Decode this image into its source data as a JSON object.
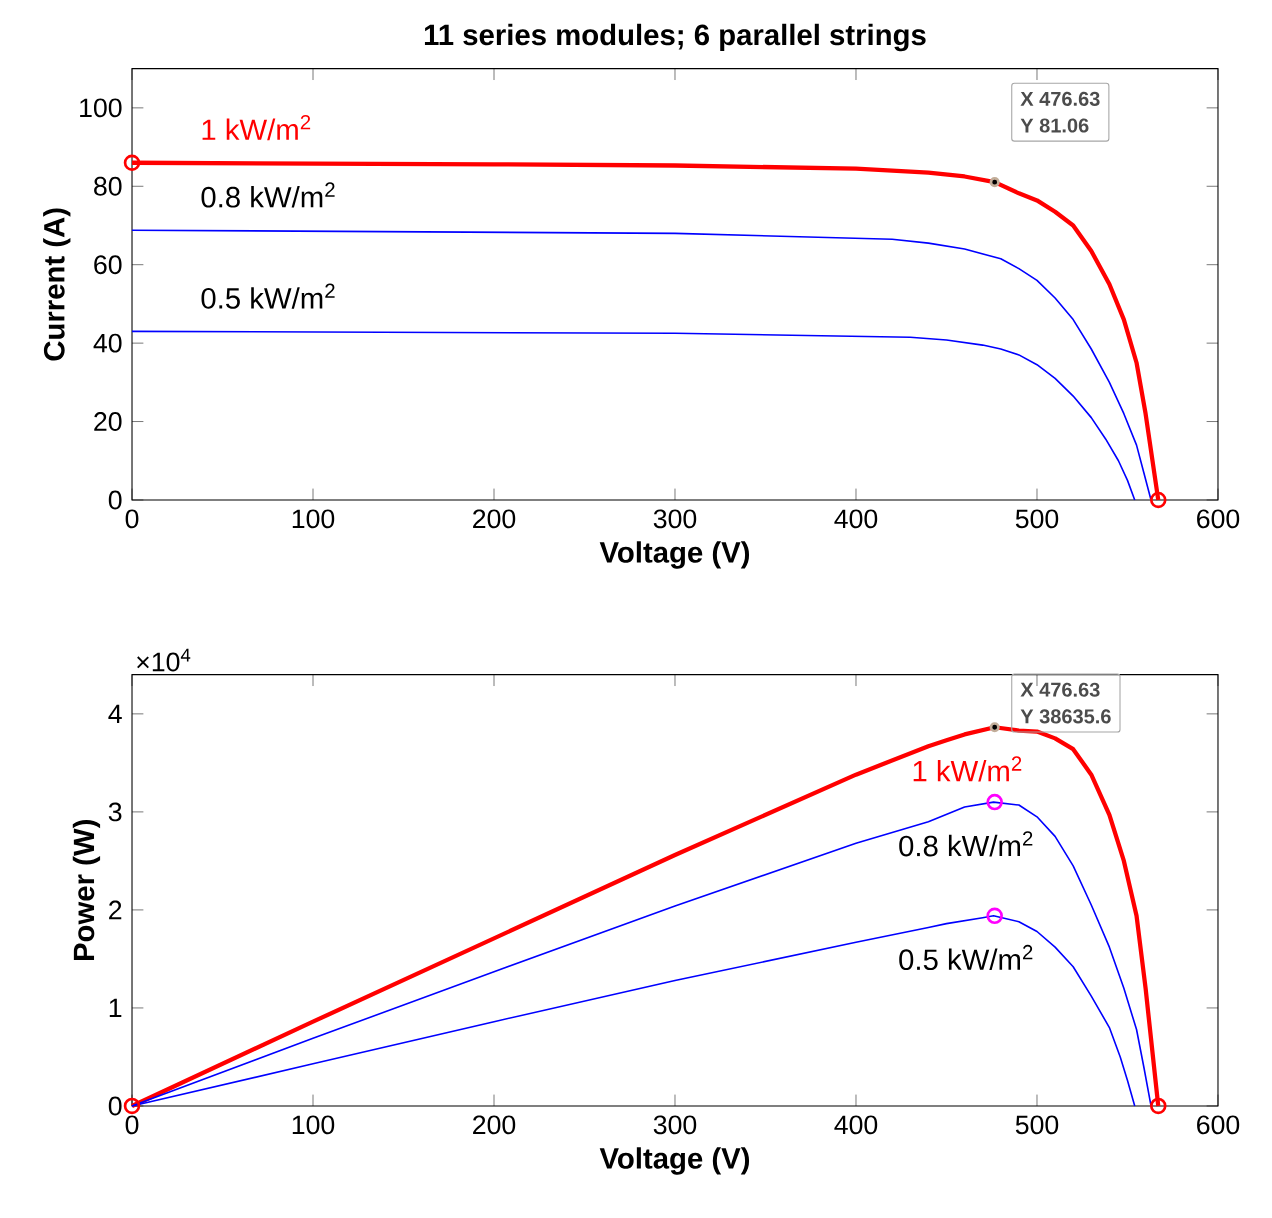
{
  "chart_data": [
    {
      "type": "line",
      "title": "11 series modules; 6 parallel strings",
      "xlabel": "Voltage (V)",
      "ylabel": "Current (A)",
      "xlim": [
        0,
        600
      ],
      "ylim": [
        0,
        110
      ],
      "xticks": [
        0,
        100,
        200,
        300,
        400,
        500,
        600
      ],
      "yticks": [
        0,
        20,
        40,
        60,
        80,
        100
      ],
      "grid": false,
      "series": [
        {
          "name": "1 kW/m$^{2}$",
          "color": "#ff0000",
          "x": [
            0,
            100,
            200,
            300,
            400,
            440,
            460,
            476.63,
            490,
            500,
            510,
            520,
            530,
            540,
            548,
            555,
            560,
            567
          ],
          "values": [
            86,
            85.8,
            85.6,
            85.3,
            84.5,
            83.5,
            82.5,
            81.06,
            78.2,
            76.4,
            73.5,
            70,
            63.5,
            55,
            46,
            35,
            22,
            0
          ]
        },
        {
          "name": "0.8 kW/m$^{2}$",
          "color": "#0000ff",
          "x": [
            0,
            300,
            420,
            440,
            460,
            480,
            490,
            500,
            510,
            520,
            530,
            540,
            548,
            555,
            559,
            563
          ],
          "values": [
            68.8,
            68,
            66.5,
            65.5,
            64,
            61.5,
            59,
            56,
            51.5,
            46,
            38.5,
            30,
            22,
            14,
            7,
            0
          ]
        },
        {
          "name": "0.5 kW/m$^{2}$",
          "color": "#0000ff",
          "x": [
            0,
            300,
            430,
            450,
            470,
            480,
            490,
            500,
            510,
            520,
            530,
            538,
            545,
            550,
            554
          ],
          "values": [
            43,
            42.5,
            41.5,
            40.8,
            39.5,
            38.5,
            37,
            34.5,
            31,
            26.5,
            21,
            15.5,
            10,
            5,
            0
          ]
        },
        {
          "type": "scatter",
          "marker": "circle",
          "color": "#ff0000",
          "x": [
            0,
            567
          ],
          "values": [
            86,
            0
          ]
        },
        {
          "type": "scatter",
          "marker": "dot",
          "color": "#000000",
          "x": [
            476.63
          ],
          "values": [
            81.06
          ]
        }
      ],
      "annotations": [
        "X 476.63",
        "Y 81.06"
      ]
    },
    {
      "type": "line",
      "xlabel": "Voltage (V)",
      "ylabel": "Power (W)",
      "xlim": [
        0,
        600
      ],
      "ylim": [
        0,
        4.4
      ],
      "xticks": [
        0,
        100,
        200,
        300,
        400,
        500,
        600
      ],
      "yticks": [
        0,
        1,
        2,
        3,
        4
      ],
      "grid": false,
      "series": [
        {
          "name": "1 kW/m$^{2}$",
          "color": "#ff0000",
          "x": [
            0,
            100,
            200,
            300,
            400,
            440,
            450,
            460,
            476.63,
            490,
            500,
            510,
            520,
            530,
            540,
            548,
            555,
            560,
            567
          ],
          "values": [
            0,
            0.86,
            1.71,
            2.56,
            3.38,
            3.67,
            3.73,
            3.79,
            3.86356,
            3.83,
            3.82,
            3.75,
            3.64,
            3.38,
            2.97,
            2.5,
            1.94,
            1.2,
            0
          ]
        },
        {
          "name": "0.8 kW/m$^{2}$",
          "color": "#0000ff",
          "x": [
            0,
            100,
            200,
            300,
            400,
            440,
            460,
            476,
            490,
            500,
            510,
            520,
            530,
            540,
            548,
            555,
            559,
            563
          ],
          "values": [
            0,
            0.69,
            1.37,
            2.04,
            2.68,
            2.9,
            3.05,
            3.1,
            3.07,
            2.95,
            2.75,
            2.45,
            2.05,
            1.62,
            1.2,
            0.78,
            0.4,
            0
          ]
        },
        {
          "name": "0.5 kW/m$^{2}$",
          "color": "#0000ff",
          "x": [
            0,
            100,
            200,
            300,
            400,
            440,
            450,
            470,
            476,
            490,
            500,
            510,
            520,
            530,
            540,
            546,
            550,
            554
          ],
          "values": [
            0,
            0.43,
            0.86,
            1.28,
            1.67,
            1.82,
            1.86,
            1.92,
            1.94,
            1.88,
            1.78,
            1.62,
            1.42,
            1.12,
            0.8,
            0.5,
            0.26,
            0
          ]
        },
        {
          "type": "scatter",
          "marker": "circle",
          "color": "#ff0000",
          "x": [
            0,
            567
          ],
          "values": [
            0,
            0
          ]
        },
        {
          "type": "scatter",
          "marker": "circle",
          "color": "#ff00ff",
          "x": [
            476.63,
            476.63
          ],
          "values": [
            3.1,
            1.94
          ]
        },
        {
          "type": "scatter",
          "marker": "dot",
          "color": "#000000",
          "x": [
            476.63
          ],
          "values": [
            3.86356
          ]
        }
      ],
      "annotations": [
        "×10$^{4}$",
        "X 476.63",
        "Y 38635.6"
      ]
    }
  ]
}
